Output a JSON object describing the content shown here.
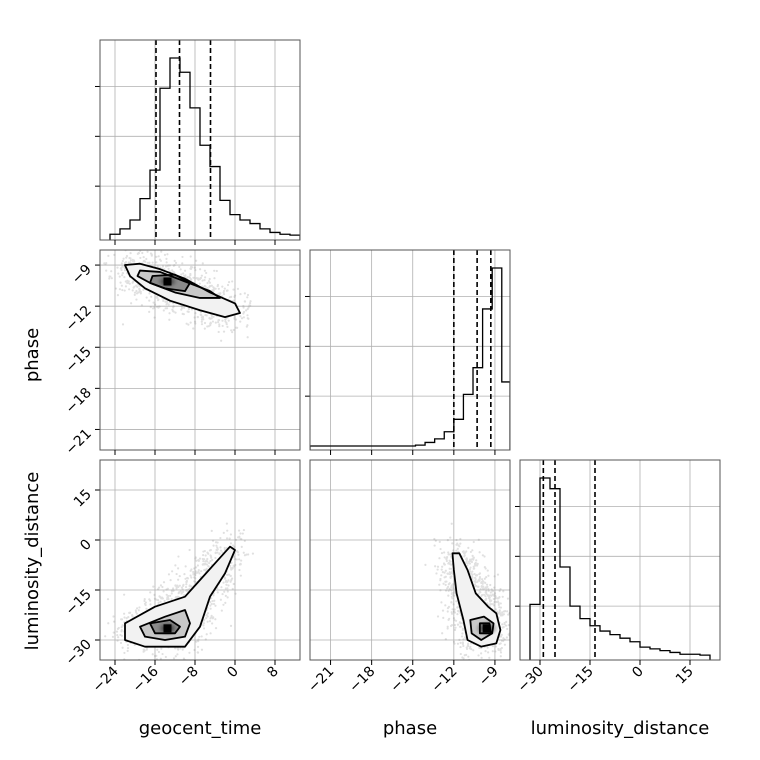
{
  "chart_data": {
    "type": "corner",
    "parameters": [
      "geocent_time",
      "phase",
      "luminosity_distance"
    ],
    "grid": true,
    "axes": {
      "geocent_time": {
        "lim": [
          -27,
          13
        ],
        "ticks": [
          -24,
          -16,
          -8,
          0,
          8
        ],
        "tick_labels": [
          "−24",
          "−16",
          "−8",
          "0",
          "8"
        ]
      },
      "phase": {
        "lim": [
          -22.5,
          -7.9
        ],
        "ticks": [
          -21,
          -18,
          -15,
          -12,
          -9
        ],
        "tick_labels": [
          "−21",
          "−18",
          "−15",
          "−12",
          "−9"
        ]
      },
      "luminosity_distance": {
        "lim": [
          -36,
          24
        ],
        "ticks": [
          -30,
          -15,
          0,
          15
        ],
        "tick_labels": [
          "−30",
          "−15",
          "0",
          "15"
        ]
      }
    },
    "histograms": {
      "geocent_time": {
        "bin_edges": [
          -25,
          -23,
          -21,
          -19,
          -17,
          -15,
          -13,
          -11,
          -9,
          -7,
          -5,
          -3,
          -1,
          1,
          3,
          5,
          7,
          9,
          11,
          13
        ],
        "counts": [
          0.01,
          0.04,
          0.09,
          0.21,
          0.37,
          0.83,
          1.0,
          0.92,
          0.72,
          0.51,
          0.39,
          0.2,
          0.12,
          0.09,
          0.07,
          0.04,
          0.02,
          0.01,
          0.005
        ],
        "quantiles": [
          -15.8,
          -11.1,
          -4.9
        ]
      },
      "phase": {
        "bin_edges": [
          -22.5,
          -21.8,
          -21.1,
          -20.4,
          -19.7,
          -19.0,
          -18.3,
          -17.6,
          -16.9,
          -16.2,
          -15.5,
          -14.8,
          -14.1,
          -13.4,
          -12.7,
          -12.0,
          -11.3,
          -10.6,
          -9.9,
          -9.2,
          -8.5,
          -7.9
        ],
        "counts": [
          0,
          0,
          0,
          0,
          0,
          0,
          0,
          0,
          0,
          0,
          0,
          0.005,
          0.02,
          0.04,
          0.08,
          0.15,
          0.29,
          0.44,
          0.77,
          1.0,
          0.36
        ],
        "quantiles": [
          -12.0,
          -10.3,
          -9.3
        ]
      },
      "luminosity_distance": {
        "bin_edges": [
          -33,
          -30,
          -27,
          -24,
          -21,
          -18,
          -15,
          -12,
          -9,
          -6,
          -3,
          0,
          3,
          6,
          9,
          12,
          15,
          18,
          21
        ],
        "counts": [
          0.29,
          1.0,
          0.94,
          0.5,
          0.28,
          0.21,
          0.17,
          0.14,
          0.12,
          0.1,
          0.08,
          0.05,
          0.04,
          0.03,
          0.02,
          0.01,
          0.01,
          0.005
        ],
        "quantiles": [
          -29.0,
          -25.5,
          -13.5
        ]
      }
    },
    "scatter_panels": [
      {
        "x": "geocent_time",
        "y": "phase",
        "peak": [
          -13.5,
          -10.2
        ],
        "contour_levels": [
          [
            [
              -22,
              -9.0
            ],
            [
              -19,
              -8.9
            ],
            [
              -15,
              -9.3
            ],
            [
              -10,
              -10.0
            ],
            [
              -5,
              -11.0
            ],
            [
              0,
              -11.8
            ],
            [
              1,
              -12.5
            ],
            [
              -2,
              -12.8
            ],
            [
              -7,
              -12.3
            ],
            [
              -13,
              -11.6
            ],
            [
              -18,
              -10.7
            ],
            [
              -21,
              -9.8
            ]
          ],
          [
            [
              -19,
              -9.4
            ],
            [
              -15,
              -9.5
            ],
            [
              -10,
              -10.2
            ],
            [
              -5,
              -10.9
            ],
            [
              -3,
              -11.4
            ],
            [
              -7,
              -11.4
            ],
            [
              -12,
              -11.0
            ],
            [
              -17,
              -10.3
            ],
            [
              -19.5,
              -9.8
            ]
          ],
          [
            [
              -16.5,
              -9.8
            ],
            [
              -12,
              -9.7
            ],
            [
              -9,
              -10.3
            ],
            [
              -10,
              -10.9
            ],
            [
              -14,
              -10.7
            ],
            [
              -17,
              -10.3
            ]
          ]
        ]
      },
      {
        "x": "geocent_time",
        "y": "luminosity_distance",
        "peak": [
          -13.5,
          -26.5
        ],
        "contour_levels": [
          [
            [
              -22,
              -25
            ],
            [
              -16,
              -20
            ],
            [
              -10,
              -17
            ],
            [
              -7,
              -12
            ],
            [
              -4,
              -7
            ],
            [
              -1,
              -2
            ],
            [
              0,
              -3
            ],
            [
              -2,
              -10
            ],
            [
              -5,
              -17
            ],
            [
              -7,
              -26
            ],
            [
              -10,
              -32
            ],
            [
              -18,
              -32
            ],
            [
              -22,
              -30
            ]
          ],
          [
            [
              -19,
              -26
            ],
            [
              -14,
              -23
            ],
            [
              -10,
              -21
            ],
            [
              -9,
              -25
            ],
            [
              -10,
              -29
            ],
            [
              -14,
              -30
            ],
            [
              -18,
              -29
            ]
          ],
          [
            [
              -17,
              -25
            ],
            [
              -13,
              -24
            ],
            [
              -11,
              -26
            ],
            [
              -12,
              -28
            ],
            [
              -16,
              -28
            ]
          ]
        ]
      },
      {
        "x": "phase",
        "y": "luminosity_distance",
        "peak": [
          -9.6,
          -26.5
        ],
        "contour_levels": [
          [
            [
              -11.6,
              -4
            ],
            [
              -11.0,
              -9
            ],
            [
              -10.4,
              -16
            ],
            [
              -9.5,
              -20
            ],
            [
              -8.9,
              -22
            ],
            [
              -8.6,
              -27
            ],
            [
              -8.9,
              -31
            ],
            [
              -10.0,
              -32
            ],
            [
              -11.0,
              -30
            ],
            [
              -11.3,
              -24
            ],
            [
              -11.8,
              -16
            ],
            [
              -12.0,
              -9
            ],
            [
              -12.1,
              -4
            ]
          ],
          [
            [
              -10.8,
              -24
            ],
            [
              -9.8,
              -23
            ],
            [
              -9.1,
              -25
            ],
            [
              -9.2,
              -28
            ],
            [
              -10.0,
              -30
            ],
            [
              -10.7,
              -28
            ]
          ],
          [
            [
              -10.1,
              -25
            ],
            [
              -9.4,
              -25
            ],
            [
              -9.3,
              -28
            ],
            [
              -10.1,
              -28
            ]
          ]
        ]
      }
    ]
  }
}
